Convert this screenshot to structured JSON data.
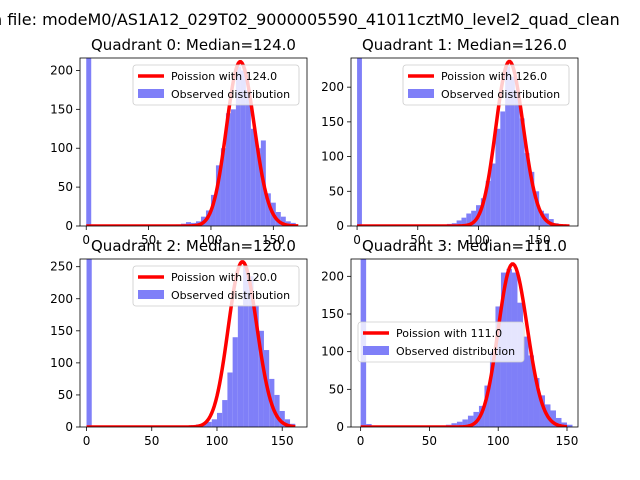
{
  "suptitle": "n file: modeM0/AS1A12_029T02_9000005590_41011cztM0_level2_quad_clean",
  "colors": {
    "observed": "#7f7ff8",
    "poisson": "#ff0000"
  },
  "chart_data": [
    {
      "type": "histogram+line",
      "quadrant": 0,
      "title": "Quadrant 0: Median=124.0",
      "median": 124.0,
      "xlim": [
        -5,
        177
      ],
      "ylim": [
        0,
        216
      ],
      "xticks": [
        0,
        50,
        100,
        150
      ],
      "yticks": [
        0,
        50,
        100,
        150,
        200
      ],
      "legend": {
        "position": "upper-right",
        "entries": [
          "Poission with 124.0",
          "Observed distribution"
        ]
      },
      "bin_width": 4,
      "bins": [
        [
          0,
          216
        ],
        [
          4,
          2
        ],
        [
          68,
          1
        ],
        [
          72,
          2
        ],
        [
          76,
          3
        ],
        [
          80,
          5
        ],
        [
          84,
          4
        ],
        [
          88,
          6
        ],
        [
          92,
          12
        ],
        [
          96,
          20
        ],
        [
          100,
          40
        ],
        [
          104,
          78
        ],
        [
          108,
          100
        ],
        [
          112,
          145
        ],
        [
          116,
          150
        ],
        [
          120,
          205
        ],
        [
          124,
          200
        ],
        [
          128,
          175
        ],
        [
          132,
          125
        ],
        [
          136,
          100
        ],
        [
          140,
          110
        ],
        [
          144,
          42
        ],
        [
          148,
          30
        ],
        [
          152,
          18
        ],
        [
          156,
          12
        ],
        [
          160,
          6
        ],
        [
          164,
          4
        ]
      ],
      "poisson_range": [
        0,
        170
      ]
    },
    {
      "type": "histogram+line",
      "quadrant": 1,
      "title": "Quadrant 1: Median=126.0",
      "median": 126.0,
      "xlim": [
        -5,
        182
      ],
      "ylim": [
        0,
        242
      ],
      "xticks": [
        0,
        50,
        100,
        150
      ],
      "yticks": [
        0,
        50,
        100,
        150,
        200
      ],
      "legend": {
        "position": "upper-right",
        "entries": [
          "Poission with 126.0",
          "Observed distribution"
        ]
      },
      "bin_width": 4,
      "bins": [
        [
          0,
          242
        ],
        [
          4,
          2
        ],
        [
          70,
          2
        ],
        [
          74,
          3
        ],
        [
          78,
          4
        ],
        [
          82,
          8
        ],
        [
          86,
          12
        ],
        [
          90,
          18
        ],
        [
          94,
          22
        ],
        [
          98,
          30
        ],
        [
          102,
          40
        ],
        [
          106,
          65
        ],
        [
          110,
          90
        ],
        [
          114,
          140
        ],
        [
          118,
          165
        ],
        [
          122,
          230
        ],
        [
          126,
          215
        ],
        [
          130,
          195
        ],
        [
          134,
          155
        ],
        [
          138,
          105
        ],
        [
          142,
          78
        ],
        [
          146,
          50
        ],
        [
          150,
          22
        ],
        [
          154,
          18
        ],
        [
          158,
          10
        ],
        [
          162,
          4
        ]
      ],
      "poisson_range": [
        0,
        175
      ]
    },
    {
      "type": "histogram+line",
      "quadrant": 2,
      "title": "Quadrant 2: Median=120.0",
      "median": 120.0,
      "xlim": [
        -5,
        169
      ],
      "ylim": [
        0,
        262
      ],
      "xticks": [
        0,
        50,
        100,
        150
      ],
      "yticks": [
        0,
        50,
        100,
        150,
        200,
        250
      ],
      "legend": {
        "position": "upper-right",
        "entries": [
          "Poission with 120.0",
          "Observed distribution"
        ]
      },
      "bin_width": 4,
      "bins": [
        [
          0,
          262
        ],
        [
          4,
          2
        ],
        [
          72,
          1
        ],
        [
          76,
          2
        ],
        [
          80,
          3
        ],
        [
          84,
          4
        ],
        [
          88,
          5
        ],
        [
          92,
          8
        ],
        [
          96,
          12
        ],
        [
          100,
          22
        ],
        [
          104,
          42
        ],
        [
          108,
          85
        ],
        [
          112,
          140
        ],
        [
          116,
          190
        ],
        [
          120,
          250
        ],
        [
          124,
          235
        ],
        [
          128,
          190
        ],
        [
          132,
          150
        ],
        [
          136,
          120
        ],
        [
          140,
          75
        ],
        [
          144,
          50
        ],
        [
          148,
          25
        ],
        [
          152,
          12
        ],
        [
          156,
          5
        ]
      ],
      "poisson_range": [
        0,
        160
      ]
    },
    {
      "type": "histogram+line",
      "quadrant": 3,
      "title": "Quadrant 3: Median=111.0",
      "median": 111.0,
      "xlim": [
        -7,
        158
      ],
      "ylim": [
        0,
        223
      ],
      "xticks": [
        0,
        50,
        100,
        150
      ],
      "yticks": [
        0,
        50,
        100,
        150,
        200
      ],
      "legend": {
        "position": "center-left",
        "entries": [
          "Poission with 111.0",
          "Observed distribution"
        ]
      },
      "bin_width": 4,
      "bins": [
        [
          0,
          223
        ],
        [
          4,
          4
        ],
        [
          8,
          2
        ],
        [
          50,
          1
        ],
        [
          54,
          1
        ],
        [
          58,
          2
        ],
        [
          62,
          3
        ],
        [
          66,
          5
        ],
        [
          70,
          7
        ],
        [
          74,
          10
        ],
        [
          78,
          15
        ],
        [
          82,
          20
        ],
        [
          86,
          28
        ],
        [
          90,
          55
        ],
        [
          94,
          100
        ],
        [
          98,
          160
        ],
        [
          102,
          205
        ],
        [
          106,
          210
        ],
        [
          110,
          205
        ],
        [
          114,
          165
        ],
        [
          118,
          120
        ],
        [
          122,
          95
        ],
        [
          126,
          65
        ],
        [
          130,
          42
        ],
        [
          134,
          30
        ],
        [
          138,
          22
        ],
        [
          142,
          12
        ],
        [
          146,
          6
        ],
        [
          150,
          3
        ]
      ],
      "poisson_range": [
        0,
        150
      ]
    }
  ]
}
